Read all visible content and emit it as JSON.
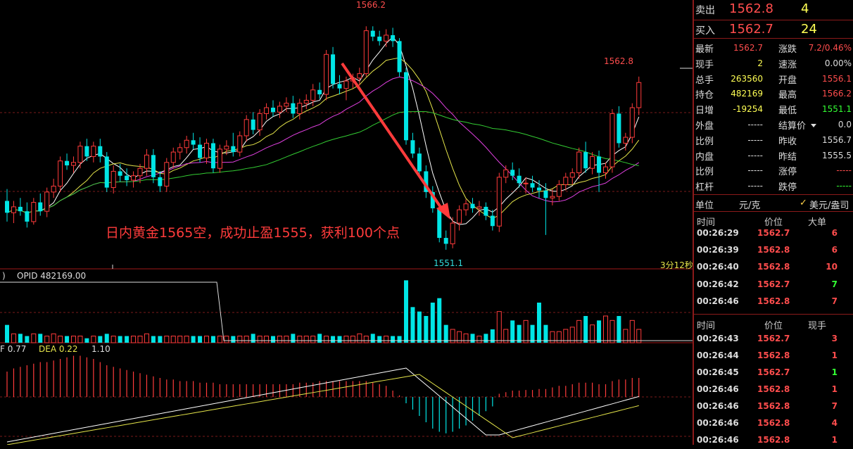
{
  "chart_data": {
    "type": "candlestick",
    "price_axis": {
      "min": 1550.0,
      "max": 1567.5
    },
    "candles": [
      {
        "o": 1554.4,
        "h": 1555.2,
        "l": 1553.0,
        "c": 1553.6
      },
      {
        "o": 1553.6,
        "h": 1554.4,
        "l": 1552.9,
        "c": 1554.0
      },
      {
        "o": 1554.0,
        "h": 1554.6,
        "l": 1553.4,
        "c": 1553.7
      },
      {
        "o": 1553.7,
        "h": 1554.3,
        "l": 1552.6,
        "c": 1553.0
      },
      {
        "o": 1553.0,
        "h": 1554.6,
        "l": 1552.8,
        "c": 1554.3
      },
      {
        "o": 1554.3,
        "h": 1554.9,
        "l": 1553.4,
        "c": 1553.7
      },
      {
        "o": 1553.7,
        "h": 1555.3,
        "l": 1553.3,
        "c": 1555.0
      },
      {
        "o": 1555.0,
        "h": 1555.9,
        "l": 1554.6,
        "c": 1555.4
      },
      {
        "o": 1555.4,
        "h": 1557.4,
        "l": 1555.0,
        "c": 1557.1
      },
      {
        "o": 1557.1,
        "h": 1557.6,
        "l": 1556.5,
        "c": 1556.8
      },
      {
        "o": 1556.8,
        "h": 1557.4,
        "l": 1556.3,
        "c": 1557.0
      },
      {
        "o": 1557.0,
        "h": 1558.4,
        "l": 1556.6,
        "c": 1558.1
      },
      {
        "o": 1558.1,
        "h": 1558.6,
        "l": 1557.1,
        "c": 1557.4
      },
      {
        "o": 1557.4,
        "h": 1558.4,
        "l": 1557.0,
        "c": 1558.1
      },
      {
        "o": 1558.1,
        "h": 1558.6,
        "l": 1557.0,
        "c": 1557.4
      },
      {
        "o": 1557.4,
        "h": 1557.7,
        "l": 1555.0,
        "c": 1555.3
      },
      {
        "o": 1555.3,
        "h": 1556.8,
        "l": 1554.9,
        "c": 1556.4
      },
      {
        "o": 1556.4,
        "h": 1556.9,
        "l": 1555.7,
        "c": 1556.1
      },
      {
        "o": 1556.1,
        "h": 1556.6,
        "l": 1555.4,
        "c": 1555.8
      },
      {
        "o": 1555.8,
        "h": 1556.4,
        "l": 1555.3,
        "c": 1556.1
      },
      {
        "o": 1556.1,
        "h": 1556.9,
        "l": 1555.6,
        "c": 1556.6
      },
      {
        "o": 1556.6,
        "h": 1557.9,
        "l": 1556.1,
        "c": 1557.5
      },
      {
        "o": 1557.5,
        "h": 1557.9,
        "l": 1555.6,
        "c": 1556.0
      },
      {
        "o": 1556.0,
        "h": 1556.4,
        "l": 1555.0,
        "c": 1555.4
      },
      {
        "o": 1555.4,
        "h": 1557.3,
        "l": 1555.0,
        "c": 1557.0
      },
      {
        "o": 1557.0,
        "h": 1558.0,
        "l": 1556.6,
        "c": 1557.7
      },
      {
        "o": 1557.7,
        "h": 1558.3,
        "l": 1557.2,
        "c": 1558.0
      },
      {
        "o": 1558.0,
        "h": 1558.8,
        "l": 1557.6,
        "c": 1558.5
      },
      {
        "o": 1558.5,
        "h": 1559.0,
        "l": 1557.9,
        "c": 1558.2
      },
      {
        "o": 1558.2,
        "h": 1558.7,
        "l": 1557.0,
        "c": 1557.3
      },
      {
        "o": 1557.3,
        "h": 1558.6,
        "l": 1556.9,
        "c": 1558.3
      },
      {
        "o": 1558.3,
        "h": 1558.6,
        "l": 1556.3,
        "c": 1556.6
      },
      {
        "o": 1556.6,
        "h": 1558.2,
        "l": 1556.3,
        "c": 1557.9
      },
      {
        "o": 1557.9,
        "h": 1558.5,
        "l": 1557.5,
        "c": 1558.1
      },
      {
        "o": 1558.1,
        "h": 1559.0,
        "l": 1557.4,
        "c": 1557.7
      },
      {
        "o": 1557.7,
        "h": 1559.1,
        "l": 1557.4,
        "c": 1558.8
      },
      {
        "o": 1558.8,
        "h": 1560.2,
        "l": 1558.4,
        "c": 1559.9
      },
      {
        "o": 1559.9,
        "h": 1560.4,
        "l": 1558.9,
        "c": 1559.2
      },
      {
        "o": 1559.2,
        "h": 1560.6,
        "l": 1558.8,
        "c": 1560.3
      },
      {
        "o": 1560.3,
        "h": 1561.0,
        "l": 1559.9,
        "c": 1560.7
      },
      {
        "o": 1560.7,
        "h": 1561.2,
        "l": 1560.1,
        "c": 1560.4
      },
      {
        "o": 1560.4,
        "h": 1561.1,
        "l": 1560.0,
        "c": 1560.8
      },
      {
        "o": 1560.8,
        "h": 1561.4,
        "l": 1560.4,
        "c": 1561.0
      },
      {
        "o": 1561.0,
        "h": 1561.5,
        "l": 1560.0,
        "c": 1560.3
      },
      {
        "o": 1560.3,
        "h": 1561.3,
        "l": 1559.9,
        "c": 1561.0
      },
      {
        "o": 1561.0,
        "h": 1561.6,
        "l": 1560.6,
        "c": 1561.2
      },
      {
        "o": 1561.2,
        "h": 1562.3,
        "l": 1560.8,
        "c": 1561.9
      },
      {
        "o": 1561.9,
        "h": 1562.4,
        "l": 1561.3,
        "c": 1561.6
      },
      {
        "o": 1561.6,
        "h": 1564.6,
        "l": 1561.2,
        "c": 1564.3
      },
      {
        "o": 1564.3,
        "h": 1564.8,
        "l": 1562.0,
        "c": 1562.3
      },
      {
        "o": 1562.3,
        "h": 1562.9,
        "l": 1561.6,
        "c": 1562.0
      },
      {
        "o": 1562.0,
        "h": 1562.8,
        "l": 1561.2,
        "c": 1562.5
      },
      {
        "o": 1562.5,
        "h": 1563.0,
        "l": 1562.0,
        "c": 1562.7
      },
      {
        "o": 1562.7,
        "h": 1563.4,
        "l": 1562.2,
        "c": 1563.0
      },
      {
        "o": 1563.0,
        "h": 1566.2,
        "l": 1562.8,
        "c": 1565.9
      },
      {
        "o": 1565.9,
        "h": 1566.2,
        "l": 1565.2,
        "c": 1565.5
      },
      {
        "o": 1565.5,
        "h": 1565.9,
        "l": 1564.9,
        "c": 1565.2
      },
      {
        "o": 1565.2,
        "h": 1566.0,
        "l": 1564.8,
        "c": 1565.6
      },
      {
        "o": 1565.6,
        "h": 1566.1,
        "l": 1564.8,
        "c": 1565.2
      },
      {
        "o": 1565.2,
        "h": 1565.4,
        "l": 1562.8,
        "c": 1563.1
      },
      {
        "o": 1563.1,
        "h": 1563.4,
        "l": 1558.2,
        "c": 1558.5
      },
      {
        "o": 1558.5,
        "h": 1559.0,
        "l": 1557.3,
        "c": 1557.6
      },
      {
        "o": 1557.6,
        "h": 1558.0,
        "l": 1556.2,
        "c": 1556.4
      },
      {
        "o": 1556.4,
        "h": 1556.8,
        "l": 1554.6,
        "c": 1555.0
      },
      {
        "o": 1555.0,
        "h": 1555.4,
        "l": 1553.6,
        "c": 1553.9
      },
      {
        "o": 1553.9,
        "h": 1554.2,
        "l": 1551.6,
        "c": 1551.9
      },
      {
        "o": 1551.9,
        "h": 1552.4,
        "l": 1551.1,
        "c": 1551.5
      },
      {
        "o": 1551.5,
        "h": 1553.3,
        "l": 1551.2,
        "c": 1552.9
      },
      {
        "o": 1552.9,
        "h": 1554.1,
        "l": 1552.4,
        "c": 1553.8
      },
      {
        "o": 1553.8,
        "h": 1554.5,
        "l": 1553.4,
        "c": 1554.2
      },
      {
        "o": 1554.2,
        "h": 1554.6,
        "l": 1553.6,
        "c": 1553.9
      },
      {
        "o": 1553.9,
        "h": 1554.4,
        "l": 1553.4,
        "c": 1554.0
      },
      {
        "o": 1554.0,
        "h": 1554.3,
        "l": 1553.1,
        "c": 1553.4
      },
      {
        "o": 1553.4,
        "h": 1553.8,
        "l": 1552.4,
        "c": 1552.7
      },
      {
        "o": 1552.7,
        "h": 1556.3,
        "l": 1552.3,
        "c": 1556.0
      },
      {
        "o": 1556.0,
        "h": 1556.8,
        "l": 1555.6,
        "c": 1556.5
      },
      {
        "o": 1556.5,
        "h": 1557.0,
        "l": 1555.8,
        "c": 1556.1
      },
      {
        "o": 1556.1,
        "h": 1556.6,
        "l": 1555.3,
        "c": 1555.6
      },
      {
        "o": 1555.6,
        "h": 1556.0,
        "l": 1554.9,
        "c": 1555.6
      },
      {
        "o": 1555.6,
        "h": 1556.1,
        "l": 1555.0,
        "c": 1555.3
      },
      {
        "o": 1555.3,
        "h": 1555.8,
        "l": 1554.6,
        "c": 1555.1
      },
      {
        "o": 1555.1,
        "h": 1555.6,
        "l": 1552.1,
        "c": 1554.6
      },
      {
        "o": 1554.6,
        "h": 1555.2,
        "l": 1554.1,
        "c": 1554.7
      },
      {
        "o": 1554.7,
        "h": 1555.8,
        "l": 1554.4,
        "c": 1555.5
      },
      {
        "o": 1555.5,
        "h": 1556.3,
        "l": 1555.1,
        "c": 1556.0
      },
      {
        "o": 1556.0,
        "h": 1556.6,
        "l": 1555.5,
        "c": 1556.3
      },
      {
        "o": 1556.3,
        "h": 1558.0,
        "l": 1555.9,
        "c": 1557.7
      },
      {
        "o": 1557.7,
        "h": 1558.4,
        "l": 1556.3,
        "c": 1556.6
      },
      {
        "o": 1556.6,
        "h": 1557.7,
        "l": 1556.2,
        "c": 1557.4
      },
      {
        "o": 1557.4,
        "h": 1557.8,
        "l": 1555.0,
        "c": 1556.3
      },
      {
        "o": 1556.3,
        "h": 1557.0,
        "l": 1555.9,
        "c": 1556.7
      },
      {
        "o": 1556.7,
        "h": 1560.6,
        "l": 1556.3,
        "c": 1560.3
      },
      {
        "o": 1560.3,
        "h": 1560.8,
        "l": 1558.0,
        "c": 1558.3
      },
      {
        "o": 1558.3,
        "h": 1559.0,
        "l": 1557.8,
        "c": 1558.7
      },
      {
        "o": 1558.7,
        "h": 1561.0,
        "l": 1558.3,
        "c": 1560.7
      },
      {
        "o": 1560.7,
        "h": 1562.8,
        "l": 1560.2,
        "c": 1562.4
      }
    ],
    "labels": {
      "high": "1566.2",
      "low": "1551.1",
      "recent_high": "1562.8",
      "period": "3分12秒",
      "indicator": "OPID 482169.00",
      "macd_dif": "F 0.77",
      "macd_dea": "DEA 0.22",
      "macd_val": "1.10",
      "left_paren": ")"
    },
    "annotation": "日内黄金1565空，成功止盈1555，获利100个点",
    "colors": {
      "up": "#ff3b3b",
      "down": "#00e5e5",
      "ma1": "#ffffff",
      "ma2": "#e5e54a",
      "ma3": "#e040e0",
      "ma4": "#33cc33",
      "arrow": "#ff3b3b"
    },
    "volume": [
      8,
      4,
      4,
      3,
      4,
      4,
      3,
      4,
      3,
      3,
      3,
      3,
      2,
      3,
      3,
      4,
      3,
      3,
      3,
      3,
      3,
      4,
      3,
      3,
      3,
      3,
      3,
      3,
      3,
      3,
      3,
      3,
      3,
      3,
      3,
      3,
      3,
      4,
      3,
      3,
      3,
      3,
      3,
      4,
      3,
      3,
      3,
      4,
      3,
      3,
      3,
      3,
      3,
      4,
      3,
      4,
      3,
      3,
      3,
      3,
      28,
      16,
      14,
      12,
      18,
      20,
      8,
      6,
      5,
      4,
      4,
      3,
      4,
      6,
      14,
      6,
      10,
      8,
      10,
      8,
      18,
      8,
      5,
      5,
      6,
      7,
      10,
      12,
      8,
      10,
      12,
      10,
      12,
      6,
      10,
      6
    ],
    "opid_level_high": 482169,
    "macd_hist": [
      0.8,
      0.9,
      0.95,
      1.0,
      1.05,
      1.1,
      1.1,
      1.15,
      1.2,
      1.25,
      1.3,
      1.3,
      1.25,
      1.2,
      1.1,
      1.0,
      0.95,
      0.9,
      0.85,
      0.8,
      0.75,
      0.7,
      0.65,
      0.6,
      0.55,
      0.55,
      0.5,
      0.5,
      0.5,
      0.45,
      0.45,
      0.45,
      0.4,
      0.4,
      0.4,
      0.4,
      0.4,
      0.4,
      0.4,
      0.4,
      0.4,
      0.4,
      0.4,
      0.4,
      0.45,
      0.45,
      0.45,
      0.5,
      0.5,
      0.5,
      0.5,
      0.5,
      0.5,
      0.5,
      0.5,
      0.45,
      0.4,
      0.35,
      0.2,
      0.05,
      -0.2,
      -0.4,
      -0.6,
      -0.8,
      -1.0,
      -1.1,
      -1.15,
      -1.1,
      -1.0,
      -0.9,
      -0.75,
      -0.6,
      -0.45,
      -0.3,
      0.1,
      0.15,
      0.2,
      0.2,
      0.22,
      0.22,
      0.25,
      0.25,
      0.3,
      0.35,
      0.35,
      0.4,
      0.45,
      0.45,
      0.45,
      0.4,
      0.4,
      0.5,
      0.55,
      0.55,
      0.6,
      0.6
    ]
  },
  "panel": {
    "sell": {
      "label": "卖出",
      "price": "1562.8",
      "vol": "4"
    },
    "buy": {
      "label": "买入",
      "price": "1562.7",
      "vol": "24"
    },
    "stats_left": [
      {
        "label": "最新",
        "value": "1562.7",
        "color": "red"
      },
      {
        "label": "现手",
        "value": "2",
        "color": "yel"
      },
      {
        "label": "总手",
        "value": "263560",
        "color": "yel"
      },
      {
        "label": "持仓",
        "value": "482169",
        "color": "yel"
      },
      {
        "label": "日增",
        "value": "-19254",
        "color": "yel"
      },
      {
        "label": "外盘",
        "value": "-----",
        "color": "w"
      },
      {
        "label": "比例",
        "value": "-----",
        "color": "w"
      },
      {
        "label": "内盘",
        "value": "-----",
        "color": "w"
      },
      {
        "label": "比例",
        "value": "-----",
        "color": "w"
      },
      {
        "label": "杠杆",
        "value": "-----",
        "color": "w"
      }
    ],
    "stats_right": [
      {
        "label": "涨跌",
        "value": "7.2/0.46%",
        "color": "red"
      },
      {
        "label": "速涨",
        "value": "0.00%",
        "color": "w"
      },
      {
        "label": "开盘",
        "value": "1556.1",
        "color": "red"
      },
      {
        "label": "最高",
        "value": "1566.2",
        "color": "red"
      },
      {
        "label": "最低",
        "value": "1551.1",
        "color": "grn"
      },
      {
        "label": "结算价",
        "value": "0.0",
        "color": "w"
      },
      {
        "label": "昨收",
        "value": "1556.7",
        "color": "w"
      },
      {
        "label": "昨结",
        "value": "1555.5",
        "color": "w"
      },
      {
        "label": "涨停",
        "value": "-----",
        "color": "red"
      },
      {
        "label": "跌停",
        "value": "-----",
        "color": "grn"
      }
    ],
    "unit_label": "单位",
    "unit_value": "元/克",
    "currency": "美元/盎司",
    "big_header": {
      "time": "时间",
      "price": "价位",
      "vol": "大单"
    },
    "big_orders": [
      {
        "time": "00:26:29",
        "price": "1562.7",
        "vol": "6",
        "color": "red"
      },
      {
        "time": "00:26:39",
        "price": "1562.8",
        "vol": "6",
        "color": "red"
      },
      {
        "time": "00:26:40",
        "price": "1562.8",
        "vol": "10",
        "color": "red"
      },
      {
        "time": "00:26:42",
        "price": "1562.7",
        "vol": "7",
        "color": "grn"
      },
      {
        "time": "00:26:46",
        "price": "1562.8",
        "vol": "7",
        "color": "red"
      }
    ],
    "tick_header": {
      "time": "时间",
      "price": "价位",
      "vol": "现手"
    },
    "ticks": [
      {
        "time": "00:26:43",
        "price": "1562.7",
        "vol": "3",
        "color": "red"
      },
      {
        "time": "00:26:44",
        "price": "1562.8",
        "vol": "1",
        "color": "red"
      },
      {
        "time": "00:26:45",
        "price": "1562.7",
        "vol": "1",
        "color": "grn"
      },
      {
        "time": "00:26:46",
        "price": "1562.8",
        "vol": "1",
        "color": "red"
      },
      {
        "time": "00:26:46",
        "price": "1562.8",
        "vol": "7",
        "color": "red"
      },
      {
        "time": "00:26:46",
        "price": "1562.8",
        "vol": "4",
        "color": "red"
      },
      {
        "time": "00:26:46",
        "price": "1562.8",
        "vol": "1",
        "color": "red"
      }
    ]
  }
}
